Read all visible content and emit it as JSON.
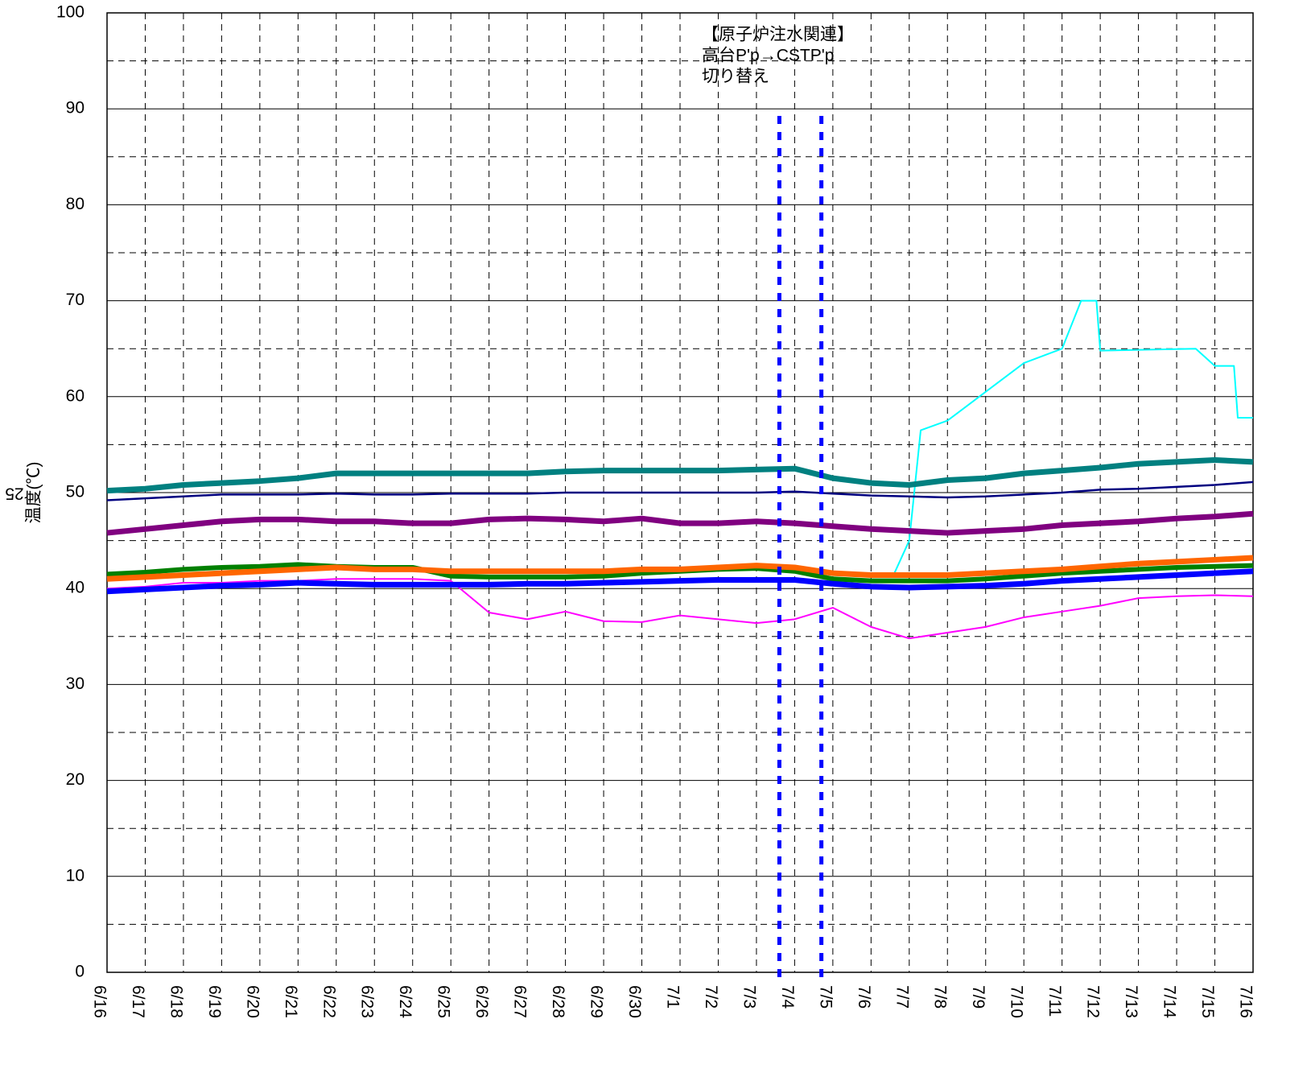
{
  "chart_data": {
    "type": "line",
    "ylabel": "温度(℃)",
    "page_label": "25",
    "annotation": [
      "【原子炉注水関連】",
      "高台P'p→CSTP'p",
      "切り替え"
    ],
    "vlines": [
      17.6,
      18.7
    ],
    "vline_color": "#0000ff",
    "xlim": [
      0,
      30
    ],
    "xticks": [
      {
        "value": 0,
        "label": "6/16"
      },
      {
        "value": 1,
        "label": "6/17"
      },
      {
        "value": 2,
        "label": "6/18"
      },
      {
        "value": 3,
        "label": "6/19"
      },
      {
        "value": 4,
        "label": "6/20"
      },
      {
        "value": 5,
        "label": "6/21"
      },
      {
        "value": 6,
        "label": "6/22"
      },
      {
        "value": 7,
        "label": "6/23"
      },
      {
        "value": 8,
        "label": "6/24"
      },
      {
        "value": 9,
        "label": "6/25"
      },
      {
        "value": 10,
        "label": "6/26"
      },
      {
        "value": 11,
        "label": "6/27"
      },
      {
        "value": 12,
        "label": "6/28"
      },
      {
        "value": 13,
        "label": "6/29"
      },
      {
        "value": 14,
        "label": "6/30"
      },
      {
        "value": 15,
        "label": "7/1"
      },
      {
        "value": 16,
        "label": "7/2"
      },
      {
        "value": 17,
        "label": "7/3"
      },
      {
        "value": 18,
        "label": "7/4"
      },
      {
        "value": 19,
        "label": "7/5"
      },
      {
        "value": 20,
        "label": "7/6"
      },
      {
        "value": 21,
        "label": "7/7"
      },
      {
        "value": 22,
        "label": "7/8"
      },
      {
        "value": 23,
        "label": "7/9"
      },
      {
        "value": 24,
        "label": "7/10"
      },
      {
        "value": 25,
        "label": "7/11"
      },
      {
        "value": 26,
        "label": "7/12"
      },
      {
        "value": 27,
        "label": "7/13"
      },
      {
        "value": 28,
        "label": "7/14"
      },
      {
        "value": 29,
        "label": "7/15"
      },
      {
        "value": 30,
        "label": "7/16"
      }
    ],
    "ylim": [
      0,
      100
    ],
    "yticks": [
      0,
      10,
      20,
      30,
      40,
      50,
      60,
      70,
      80,
      90,
      100
    ],
    "minor_yticks": [
      5,
      15,
      25,
      35,
      45,
      55,
      65,
      75,
      85,
      95
    ],
    "grid": true,
    "x": [
      0,
      1,
      2,
      3,
      4,
      5,
      6,
      7,
      8,
      9,
      10,
      11,
      12,
      13,
      14,
      15,
      16,
      17,
      18,
      19,
      20,
      21,
      22,
      23,
      24,
      25,
      26,
      27,
      28,
      29,
      30
    ],
    "series": [
      {
        "color": "#ff00ff",
        "values": [
          40,
          40.2,
          40.6,
          40.6,
          40.8,
          40.8,
          41,
          41,
          41,
          40.8,
          37.5,
          36.8,
          37.6,
          36.6,
          36.5,
          37.2,
          36.8,
          36.4,
          36.8,
          38,
          36,
          34.8,
          35.4,
          36,
          37,
          37.6,
          38.2,
          39,
          39.2,
          39.3,
          39.2
        ]
      },
      {
        "color": "#00ffff",
        "x": [
          20.6,
          21,
          21.3,
          22,
          23,
          24,
          25,
          25.5,
          25.9,
          26,
          28.5,
          29,
          29.5,
          29.6,
          30
        ],
        "values": [
          41.5,
          45,
          56.5,
          57.5,
          60.5,
          63.5,
          65,
          70,
          70,
          64.8,
          65,
          63.2,
          63.2,
          57.8,
          57.8
        ]
      },
      {
        "color": "#000080",
        "values": [
          49.2,
          49.4,
          49.6,
          49.8,
          49.8,
          49.8,
          49.9,
          49.8,
          49.8,
          49.9,
          49.9,
          49.9,
          50,
          50,
          50,
          50,
          50,
          50,
          50.1,
          49.9,
          49.7,
          49.6,
          49.5,
          49.6,
          49.8,
          50,
          50.3,
          50.4,
          50.6,
          50.8,
          51.1
        ]
      },
      {
        "color": "#008000",
        "values": [
          41.5,
          41.7,
          42,
          42.2,
          42.3,
          42.5,
          42.3,
          42.2,
          42.2,
          41.3,
          41.2,
          41.2,
          41.2,
          41.3,
          41.6,
          41.8,
          42,
          42.1,
          41.8,
          41,
          40.8,
          40.8,
          40.8,
          41,
          41.3,
          41.6,
          41.8,
          42,
          42.2,
          42.3,
          42.4
        ]
      },
      {
        "color": "#ff6600",
        "values": [
          41,
          41.2,
          41.4,
          41.6,
          41.8,
          42,
          42.2,
          42,
          42,
          41.8,
          41.8,
          41.8,
          41.8,
          41.8,
          42,
          42,
          42.2,
          42.4,
          42.2,
          41.6,
          41.4,
          41.4,
          41.4,
          41.6,
          41.8,
          42,
          42.3,
          42.6,
          42.8,
          43,
          43.2
        ]
      },
      {
        "color": "#0000ff",
        "values": [
          39.7,
          39.9,
          40.1,
          40.3,
          40.4,
          40.6,
          40.5,
          40.4,
          40.4,
          40.4,
          40.4,
          40.5,
          40.5,
          40.6,
          40.7,
          40.8,
          40.9,
          40.9,
          40.9,
          40.5,
          40.2,
          40.1,
          40.2,
          40.3,
          40.5,
          40.8,
          41,
          41.2,
          41.4,
          41.6,
          41.8
        ]
      },
      {
        "color": "#800080",
        "values": [
          45.8,
          46.2,
          46.6,
          47,
          47.2,
          47.2,
          47,
          47,
          46.8,
          46.8,
          47.2,
          47.3,
          47.2,
          47,
          47.3,
          46.8,
          46.8,
          47,
          46.8,
          46.5,
          46.2,
          46,
          45.8,
          46,
          46.2,
          46.6,
          46.8,
          47,
          47.3,
          47.5,
          47.8
        ]
      },
      {
        "color": "#008080",
        "values": [
          50.2,
          50.4,
          50.8,
          51,
          51.2,
          51.5,
          52,
          52,
          52,
          52,
          52,
          52,
          52.2,
          52.3,
          52.3,
          52.3,
          52.3,
          52.4,
          52.5,
          51.5,
          51,
          50.8,
          51.3,
          51.5,
          52,
          52.3,
          52.6,
          53,
          53.2,
          53.4,
          53.2
        ]
      }
    ]
  }
}
